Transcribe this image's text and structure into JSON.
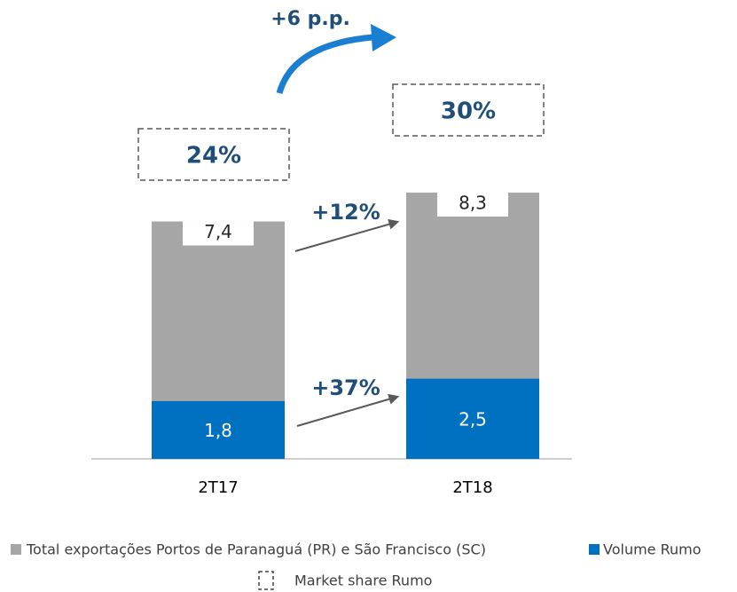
{
  "chart_data": {
    "type": "bar",
    "barmode": "overlay",
    "categories": [
      "2T17",
      "2T18"
    ],
    "series": [
      {
        "name": "Total exportações Portos de Paranaguá (PR) e São Francisco (SC)",
        "color": "#a6a6a6",
        "values": [
          7.4,
          8.3
        ],
        "value_labels": [
          "7,4",
          "8,3"
        ]
      },
      {
        "name": "Volume Rumo",
        "color": "#0070c0",
        "values": [
          1.8,
          2.5
        ],
        "value_labels": [
          "1,8",
          "2,5"
        ]
      }
    ],
    "market_share": {
      "name": "Market share Rumo",
      "values": [
        24,
        30
      ],
      "value_labels": [
        "24%",
        "30%"
      ]
    },
    "annotations": [
      "+12%",
      "+37%",
      "+6 p.p."
    ]
  }
}
